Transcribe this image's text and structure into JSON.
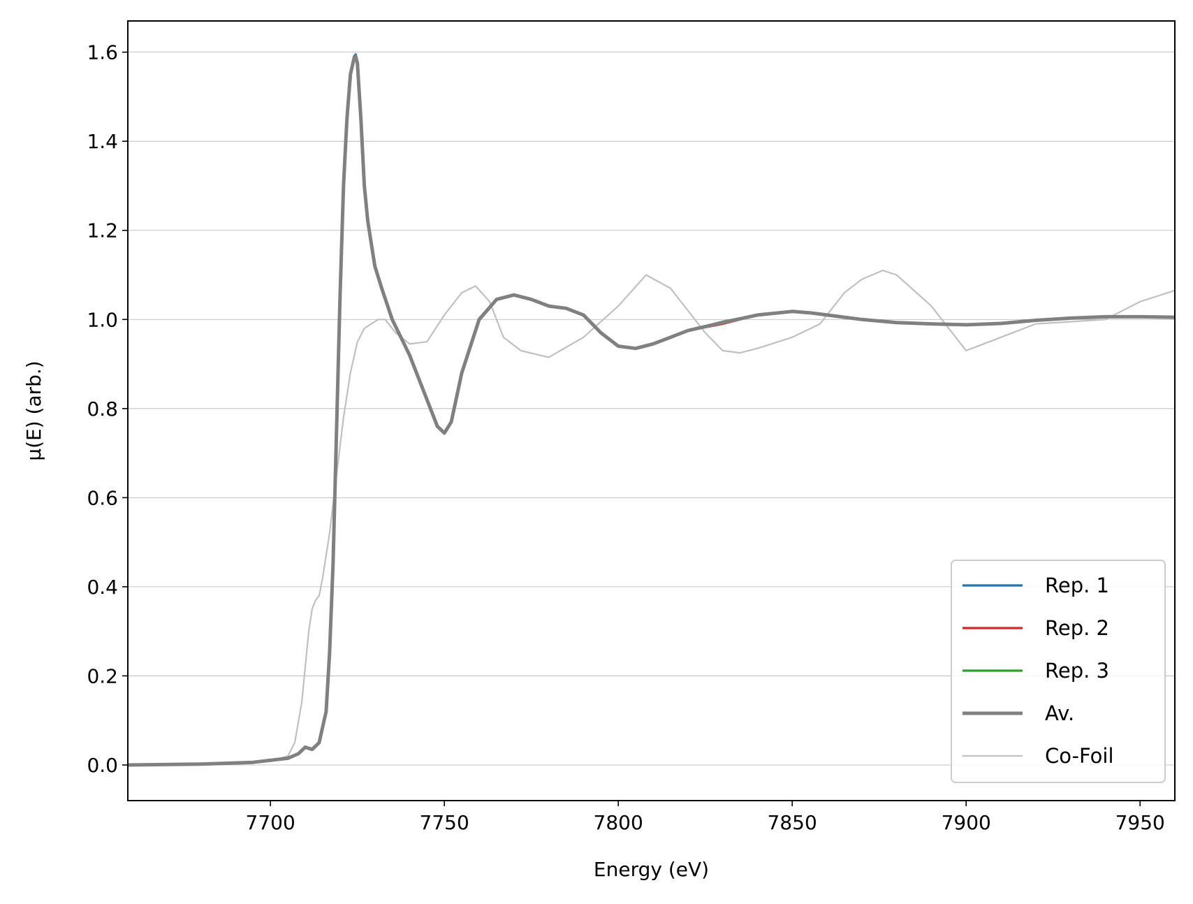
{
  "chart_data": {
    "type": "line",
    "title": "",
    "xlabel": "Energy (eV)",
    "ylabel": "μ(E) (arb.)",
    "xlim": [
      7659,
      7960
    ],
    "ylim": [
      -0.08,
      1.67
    ],
    "x_ticks": [
      7700,
      7750,
      7800,
      7850,
      7900,
      7950
    ],
    "y_ticks": [
      0.0,
      0.2,
      0.4,
      0.6,
      0.8,
      1.0,
      1.2,
      1.4,
      1.6
    ],
    "y_tick_labels": [
      "0.0",
      "0.2",
      "0.4",
      "0.6",
      "0.8",
      "1.0",
      "1.2",
      "1.4",
      "1.6"
    ],
    "grid": "horizontal",
    "legend_position": "lower-right",
    "series": [
      {
        "name": "Rep. 1",
        "color": "#1f77b4",
        "width": "normal",
        "x": [
          7659,
          7680,
          7695,
          7705,
          7708,
          7710,
          7712,
          7714,
          7716,
          7717,
          7718,
          7719,
          7720,
          7721,
          7722,
          7723,
          7724,
          7724.5,
          7725,
          7726,
          7727,
          7728,
          7730,
          7732,
          7735,
          7740,
          7745,
          7748,
          7750,
          7752,
          7755,
          7760,
          7765,
          7770,
          7775,
          7780,
          7785,
          7790,
          7795,
          7800,
          7805,
          7810,
          7815,
          7820,
          7830,
          7840,
          7850,
          7855,
          7860,
          7870,
          7880,
          7890,
          7900,
          7910,
          7920,
          7930,
          7940,
          7950,
          7960
        ],
        "y": [
          0.0,
          0.002,
          0.006,
          0.015,
          0.025,
          0.04,
          0.035,
          0.05,
          0.12,
          0.25,
          0.45,
          0.75,
          1.05,
          1.3,
          1.45,
          1.55,
          1.59,
          1.595,
          1.58,
          1.45,
          1.3,
          1.22,
          1.12,
          1.07,
          1.0,
          0.92,
          0.82,
          0.76,
          0.745,
          0.77,
          0.88,
          1.0,
          1.045,
          1.055,
          1.045,
          1.03,
          1.025,
          1.01,
          0.97,
          0.94,
          0.935,
          0.945,
          0.96,
          0.975,
          0.995,
          1.01,
          1.018,
          1.015,
          1.01,
          1.0,
          0.993,
          0.99,
          0.988,
          0.992,
          0.998,
          1.003,
          1.006,
          1.006,
          1.005
        ]
      },
      {
        "name": "Rep. 2",
        "color": "#d62728",
        "width": "normal",
        "x": [
          7659,
          7680,
          7695,
          7705,
          7708,
          7710,
          7712,
          7714,
          7716,
          7717,
          7718,
          7719,
          7720,
          7721,
          7722,
          7723,
          7724,
          7724.5,
          7725,
          7726,
          7727,
          7728,
          7730,
          7732,
          7735,
          7740,
          7745,
          7748,
          7750,
          7752,
          7755,
          7760,
          7765,
          7770,
          7775,
          7780,
          7785,
          7790,
          7795,
          7800,
          7805,
          7810,
          7815,
          7820,
          7830,
          7840,
          7850,
          7855,
          7860,
          7870,
          7880,
          7890,
          7900,
          7910,
          7920,
          7930,
          7940,
          7950,
          7960
        ],
        "y": [
          0.0,
          0.002,
          0.006,
          0.015,
          0.025,
          0.04,
          0.035,
          0.05,
          0.12,
          0.25,
          0.45,
          0.75,
          1.05,
          1.3,
          1.45,
          1.55,
          1.585,
          1.59,
          1.575,
          1.45,
          1.3,
          1.22,
          1.12,
          1.07,
          1.0,
          0.92,
          0.82,
          0.76,
          0.745,
          0.77,
          0.88,
          1.0,
          1.045,
          1.055,
          1.045,
          1.03,
          1.025,
          1.01,
          0.97,
          0.94,
          0.935,
          0.945,
          0.96,
          0.975,
          0.99,
          1.01,
          1.018,
          1.015,
          1.01,
          1.0,
          0.993,
          0.99,
          0.988,
          0.992,
          0.998,
          1.003,
          1.006,
          1.006,
          1.005
        ]
      },
      {
        "name": "Rep. 3",
        "color": "#2ca02c",
        "width": "normal",
        "x": [
          7659,
          7680,
          7695,
          7705,
          7708,
          7710,
          7712,
          7714,
          7716,
          7717,
          7718,
          7719,
          7720,
          7721,
          7722,
          7723,
          7724,
          7724.5,
          7725,
          7726,
          7727,
          7728,
          7730,
          7732,
          7735,
          7740,
          7745,
          7748,
          7750,
          7752,
          7755,
          7760,
          7765,
          7770,
          7775,
          7780,
          7785,
          7790,
          7795,
          7800,
          7805,
          7810,
          7815,
          7820,
          7830,
          7840,
          7850,
          7855,
          7860,
          7870,
          7880,
          7890,
          7900,
          7910,
          7920,
          7930,
          7940,
          7950,
          7960
        ],
        "y": [
          0.0,
          0.002,
          0.006,
          0.015,
          0.025,
          0.04,
          0.035,
          0.05,
          0.12,
          0.25,
          0.45,
          0.75,
          1.05,
          1.3,
          1.45,
          1.55,
          1.585,
          1.59,
          1.575,
          1.45,
          1.3,
          1.22,
          1.12,
          1.07,
          1.0,
          0.92,
          0.82,
          0.76,
          0.745,
          0.77,
          0.88,
          1.0,
          1.045,
          1.055,
          1.045,
          1.03,
          1.025,
          1.01,
          0.97,
          0.94,
          0.935,
          0.945,
          0.96,
          0.975,
          0.995,
          1.01,
          1.018,
          1.015,
          1.01,
          1.0,
          0.993,
          0.99,
          0.988,
          0.99,
          0.998,
          1.003,
          1.006,
          1.006,
          1.005
        ]
      },
      {
        "name": "Av.",
        "color": "#808080",
        "width": "thick",
        "x": [
          7659,
          7680,
          7695,
          7705,
          7708,
          7710,
          7712,
          7714,
          7716,
          7717,
          7718,
          7719,
          7720,
          7721,
          7722,
          7723,
          7724,
          7724.5,
          7725,
          7726,
          7727,
          7728,
          7730,
          7732,
          7735,
          7740,
          7745,
          7748,
          7750,
          7752,
          7755,
          7760,
          7765,
          7770,
          7775,
          7780,
          7785,
          7790,
          7795,
          7800,
          7805,
          7810,
          7815,
          7820,
          7830,
          7840,
          7850,
          7855,
          7860,
          7870,
          7880,
          7890,
          7900,
          7910,
          7920,
          7930,
          7940,
          7950,
          7960
        ],
        "y": [
          0.0,
          0.002,
          0.006,
          0.015,
          0.025,
          0.04,
          0.035,
          0.05,
          0.12,
          0.25,
          0.45,
          0.75,
          1.05,
          1.3,
          1.45,
          1.55,
          1.585,
          1.59,
          1.575,
          1.45,
          1.3,
          1.22,
          1.12,
          1.07,
          1.0,
          0.92,
          0.82,
          0.76,
          0.745,
          0.77,
          0.88,
          1.0,
          1.045,
          1.055,
          1.045,
          1.03,
          1.025,
          1.01,
          0.97,
          0.94,
          0.935,
          0.945,
          0.96,
          0.975,
          0.993,
          1.01,
          1.018,
          1.015,
          1.01,
          1.0,
          0.993,
          0.99,
          0.988,
          0.991,
          0.998,
          1.003,
          1.006,
          1.006,
          1.005
        ]
      },
      {
        "name": "Co-Foil",
        "color": "#c0c0c0",
        "width": "thin",
        "x": [
          7659,
          7690,
          7700,
          7705,
          7707,
          7709,
          7710,
          7711,
          7712,
          7713,
          7714,
          7715,
          7717,
          7719,
          7721,
          7723,
          7725,
          7727,
          7729,
          7731,
          7733,
          7736,
          7740,
          7745,
          7750,
          7755,
          7759,
          7763,
          7767,
          7772,
          7780,
          7790,
          7800,
          7808,
          7815,
          7820,
          7825,
          7830,
          7835,
          7840,
          7850,
          7858,
          7865,
          7870,
          7876,
          7880,
          7890,
          7900,
          7910,
          7920,
          7930,
          7940,
          7950,
          7960
        ],
        "y": [
          0.0,
          0.003,
          0.008,
          0.02,
          0.05,
          0.14,
          0.22,
          0.3,
          0.35,
          0.37,
          0.38,
          0.42,
          0.52,
          0.65,
          0.78,
          0.88,
          0.95,
          0.98,
          0.99,
          1.0,
          1.0,
          0.97,
          0.945,
          0.95,
          1.01,
          1.06,
          1.075,
          1.04,
          0.96,
          0.93,
          0.915,
          0.96,
          1.03,
          1.1,
          1.07,
          1.02,
          0.97,
          0.93,
          0.925,
          0.935,
          0.96,
          0.99,
          1.06,
          1.09,
          1.11,
          1.1,
          1.03,
          0.93,
          0.96,
          0.99,
          0.995,
          1.0,
          1.04,
          1.065
        ]
      }
    ]
  }
}
